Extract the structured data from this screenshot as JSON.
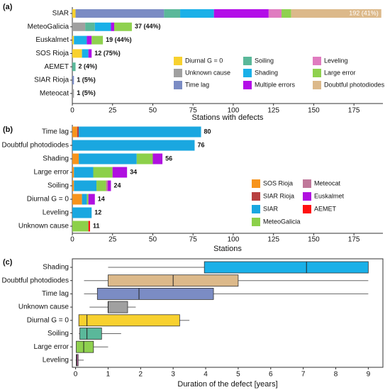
{
  "chart_data": [
    {
      "type": "bar",
      "panel": "(a)",
      "orientation": "horizontal",
      "stacked": true,
      "categories": [
        "SIAR",
        "MeteoGalicia",
        "Euskalmet",
        "SOS Rioja",
        "AEMET",
        "SIAR Rioja",
        "Meteocat"
      ],
      "series": [
        {
          "name": "Diurnal G = 0",
          "color": "#f8d12f",
          "values": [
            2,
            0,
            1,
            6,
            0,
            0,
            0
          ]
        },
        {
          "name": "Unknown cause",
          "color": "#a0a0a0",
          "values": [
            0,
            8,
            0,
            0,
            0,
            0,
            1
          ]
        },
        {
          "name": "Time lag",
          "color": "#7b8cc4",
          "values": [
            55,
            0,
            0,
            0,
            0,
            1,
            0
          ]
        },
        {
          "name": "Soiling",
          "color": "#5ab89a",
          "values": [
            10,
            6,
            0,
            0,
            2,
            0,
            0
          ]
        },
        {
          "name": "Shading",
          "color": "#1ab0e8",
          "values": [
            21,
            10,
            8,
            4,
            0,
            0,
            0
          ]
        },
        {
          "name": "Multiple errors",
          "color": "#b30ee8",
          "values": [
            34,
            2,
            3,
            2,
            0,
            0,
            0
          ]
        },
        {
          "name": "Leveling",
          "color": "#e07cc0",
          "values": [
            8,
            0,
            0,
            0,
            0,
            0,
            0
          ]
        },
        {
          "name": "Large error",
          "color": "#8fd14f",
          "values": [
            6,
            11,
            7,
            0,
            0,
            0,
            0
          ]
        },
        {
          "name": "Doubtful photodiodes",
          "color": "#dcb98a",
          "values": [
            56,
            0,
            0,
            0,
            0,
            0,
            0
          ]
        }
      ],
      "totals": [
        192,
        37,
        19,
        12,
        2,
        1,
        1
      ],
      "total_labels": [
        "192 (41%)",
        "37 (44%)",
        "19 (44%)",
        "12 (75%)",
        "2 (4%)",
        "1 (5%)",
        "1 (5%)"
      ],
      "xlabel": "Stations with defects",
      "xlim": [
        0,
        193
      ],
      "xticks": [
        0,
        25,
        50,
        75,
        100,
        125,
        150,
        175
      ],
      "legend": "lower right"
    },
    {
      "type": "bar",
      "panel": "(b)",
      "orientation": "horizontal",
      "stacked": true,
      "categories": [
        "Time lag",
        "Doubtful photodiodes",
        "Shading",
        "Large error",
        "Soiling",
        "Diurnal G = 0",
        "Leveling",
        "Unknown cause"
      ],
      "series": [
        {
          "name": "SOS Rioja",
          "color": "#f7941d",
          "values": [
            3,
            0,
            4,
            1,
            1,
            6,
            0,
            0
          ]
        },
        {
          "name": "SIAR Rioja",
          "color": "#b84040",
          "values": [
            1,
            0,
            0,
            0,
            0,
            0,
            0,
            0
          ]
        },
        {
          "name": "SIAR",
          "color": "#1aa7e0",
          "values": [
            76,
            76,
            36,
            12,
            14,
            3,
            12,
            0
          ]
        },
        {
          "name": "MeteoGalicia",
          "color": "#8cd04a",
          "values": [
            0,
            0,
            10,
            12,
            6,
            1,
            0,
            10
          ]
        },
        {
          "name": "Meteocat",
          "color": "#c0789a",
          "values": [
            0,
            0,
            0,
            0,
            1,
            0,
            0,
            0
          ]
        },
        {
          "name": "Euskalmet",
          "color": "#b010e0",
          "values": [
            0,
            0,
            6,
            9,
            2,
            4,
            0,
            0
          ]
        },
        {
          "name": "AEMET",
          "color": "#ff1010",
          "values": [
            0,
            0,
            0,
            0,
            0,
            0,
            0,
            1
          ]
        }
      ],
      "totals": [
        80,
        76,
        56,
        34,
        24,
        14,
        12,
        11
      ],
      "xlabel": "Stations",
      "xlim": [
        0,
        193
      ],
      "xticks": [
        0,
        25,
        50,
        75,
        100,
        125,
        150,
        175
      ],
      "legend": "right"
    },
    {
      "type": "box",
      "panel": "(c)",
      "orientation": "horizontal",
      "categories": [
        "Shading",
        "Doubtful photodiodes",
        "Time lag",
        "Unknown cause",
        "Diurnal G = 0",
        "Soiling",
        "Large error",
        "Leveling"
      ],
      "colors": [
        "#1ab0e8",
        "#dcb98a",
        "#7b8cc4",
        "#a0a0a0",
        "#f8d12f",
        "#5ab89a",
        "#8fd14f",
        "#e07cc0"
      ],
      "boxes": [
        {
          "min": 1.0,
          "q1": 3.96,
          "median": 7.1,
          "q3": 9.0,
          "max": 9.0
        },
        {
          "min": 0.26,
          "q1": 1.0,
          "median": 3.0,
          "q3": 5.0,
          "max": 9.0
        },
        {
          "min": 0.26,
          "q1": 0.67,
          "median": 1.95,
          "q3": 4.24,
          "max": 9.0
        },
        {
          "min": 0.43,
          "q1": 1.0,
          "median": 1.0,
          "q3": 1.6,
          "max": 1.85
        },
        {
          "min": 0.1,
          "q1": 0.1,
          "median": 0.35,
          "q3": 3.2,
          "max": 3.5
        },
        {
          "min": 0.1,
          "q1": 0.13,
          "median": 0.35,
          "q3": 0.8,
          "max": 1.4
        },
        {
          "min": 0.02,
          "q1": 0.02,
          "median": 0.25,
          "q3": 0.55,
          "max": 1.0
        },
        {
          "min": 0.0,
          "q1": 0.02,
          "median": 0.04,
          "q3": 0.08,
          "max": 0.25
        }
      ],
      "xlabel": "Duration of the defect [years]",
      "xlim": [
        -0.1,
        9.45
      ],
      "xticks": [
        0,
        1,
        2,
        3,
        4,
        5,
        6,
        7,
        8,
        9
      ]
    }
  ]
}
